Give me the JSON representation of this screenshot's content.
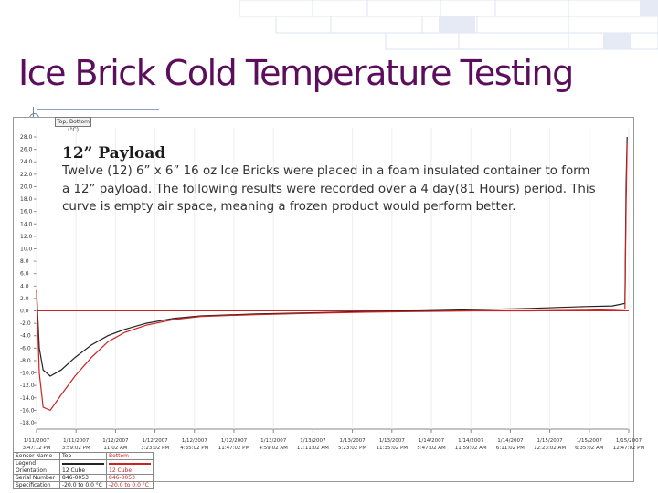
{
  "slide": {
    "title": "Ice Brick Cold Temperature Testing",
    "tab_label": "Top, Bottom (°C)",
    "payload_title": "12” Payload",
    "payload_description": "Twelve (12) 6” x 6” 16 oz Ice Bricks were placed in a foam insulated container to form a 12” payload. The following results were recorded over a 4 day(81 Hours) period. This curve is empty air space, meaning a frozen product would perform better."
  },
  "legend_table": {
    "rows": [
      {
        "label": "Sensor Name",
        "top": "Top",
        "bottom": "Bottom"
      },
      {
        "label": "Legend",
        "top": "",
        "bottom": ""
      },
      {
        "label": "Orientation",
        "top": "12 Cube",
        "bottom": "12 Cube"
      },
      {
        "label": "Serial Number",
        "top": "846-0053",
        "bottom": "846-0053"
      },
      {
        "label": "Specification",
        "top": "-20.0 to 0.0 °C",
        "bottom": "-20.0 to 0.0 °C"
      }
    ]
  },
  "chart_data": {
    "type": "line",
    "ylabel": "°C",
    "ylim": [
      -20,
      30
    ],
    "y_ticks": [
      {
        "value": 28,
        "label": "28.0"
      },
      {
        "value": 26,
        "label": "26.0"
      },
      {
        "value": 24,
        "label": "24.0"
      },
      {
        "value": 22,
        "label": "22.0"
      },
      {
        "value": 20,
        "label": "20.0"
      },
      {
        "value": 18,
        "label": "18.0"
      },
      {
        "value": 16,
        "label": "16.0"
      },
      {
        "value": 14,
        "label": "14.0"
      },
      {
        "value": 12,
        "label": "12.0"
      },
      {
        "value": 10,
        "label": "10.0"
      },
      {
        "value": 8,
        "label": "8.0"
      },
      {
        "value": 6,
        "label": "6.0"
      },
      {
        "value": 4,
        "label": "4.0"
      },
      {
        "value": 2,
        "label": "2.0"
      },
      {
        "value": 0,
        "label": "0.0"
      },
      {
        "value": -2,
        "label": "-2.0"
      },
      {
        "value": -4,
        "label": "-4.0"
      },
      {
        "value": -6,
        "label": "-6.0"
      },
      {
        "value": -8,
        "label": "-8.0"
      },
      {
        "value": -10,
        "label": "-10.0"
      },
      {
        "value": -12,
        "label": "-12.0"
      },
      {
        "value": -14,
        "label": "-14.0"
      },
      {
        "value": -16,
        "label": "-16.0"
      },
      {
        "value": -18,
        "label": "-18.0"
      }
    ],
    "x_ticks": [
      {
        "hours": 0,
        "date": "1/11/2007",
        "time": "3:47:12 PM"
      },
      {
        "hours": 7.2,
        "date": "1/11/2007",
        "time": "3:59:02 PM"
      },
      {
        "hours": 14.4,
        "date": "1/12/2007",
        "time": "11:02 AM"
      },
      {
        "hours": 21.6,
        "date": "1/12/2007",
        "time": "3:23:02 PM"
      },
      {
        "hours": 28.8,
        "date": "1/12/2007",
        "time": "4:35:02 PM"
      },
      {
        "hours": 36.0,
        "date": "1/12/2007",
        "time": "11:47:02 PM"
      },
      {
        "hours": 43.2,
        "date": "1/13/2007",
        "time": "4:59:02 AM"
      },
      {
        "hours": 50.4,
        "date": "1/13/2007",
        "time": "11:11:02 AM"
      },
      {
        "hours": 57.6,
        "date": "1/13/2007",
        "time": "5:23:02 PM"
      },
      {
        "hours": 64.8,
        "date": "1/13/2007",
        "time": "11:35:02 PM"
      },
      {
        "hours": 72.0,
        "date": "1/14/2007",
        "time": "5:47:02 AM"
      },
      {
        "hours": 79.2,
        "date": "1/14/2007",
        "time": "11:59:02 AM"
      },
      {
        "hours": 86.4,
        "date": "1/14/2007",
        "time": "6:11:02 PM"
      },
      {
        "hours": 93.6,
        "date": "1/15/2007",
        "time": "12:23:02 AM"
      },
      {
        "hours": 100.8,
        "date": "1/15/2007",
        "time": "6:35:02 AM"
      },
      {
        "hours": 108.0,
        "date": "1/15/2007",
        "time": "12:47:02 PM"
      }
    ],
    "xlim": [
      0,
      108
    ],
    "reference_line_y": 0,
    "series": [
      {
        "name": "Top",
        "color": "#222222",
        "points": [
          [
            0,
            3.3
          ],
          [
            0.5,
            -6
          ],
          [
            1.2,
            -9.5
          ],
          [
            2.5,
            -10.5
          ],
          [
            4.5,
            -9.5
          ],
          [
            7,
            -7.5
          ],
          [
            10,
            -5.5
          ],
          [
            13,
            -4
          ],
          [
            16,
            -3
          ],
          [
            20,
            -2
          ],
          [
            25,
            -1.2
          ],
          [
            30,
            -0.8
          ],
          [
            40,
            -0.5
          ],
          [
            50,
            -0.3
          ],
          [
            60,
            -0.1
          ],
          [
            70,
            0
          ],
          [
            80,
            0.2
          ],
          [
            90,
            0.4
          ],
          [
            100,
            0.7
          ],
          [
            105,
            0.8
          ],
          [
            107.3,
            1.2
          ],
          [
            107.5,
            20
          ],
          [
            107.7,
            28
          ]
        ]
      },
      {
        "name": "Bottom",
        "color": "#cc2222",
        "points": [
          [
            0,
            3.2
          ],
          [
            0.5,
            -10
          ],
          [
            1.2,
            -15.5
          ],
          [
            2.5,
            -16
          ],
          [
            4.5,
            -13.5
          ],
          [
            7,
            -10.5
          ],
          [
            10,
            -7.5
          ],
          [
            13,
            -5
          ],
          [
            16,
            -3.5
          ],
          [
            20,
            -2.3
          ],
          [
            25,
            -1.4
          ],
          [
            30,
            -0.9
          ],
          [
            40,
            -0.6
          ],
          [
            50,
            -0.4
          ],
          [
            60,
            -0.2
          ],
          [
            70,
            -0.1
          ],
          [
            80,
            0
          ],
          [
            90,
            0
          ],
          [
            100,
            0.1
          ],
          [
            105,
            0.2
          ],
          [
            107.3,
            0.3
          ],
          [
            107.5,
            16
          ],
          [
            107.7,
            27
          ]
        ]
      }
    ]
  }
}
